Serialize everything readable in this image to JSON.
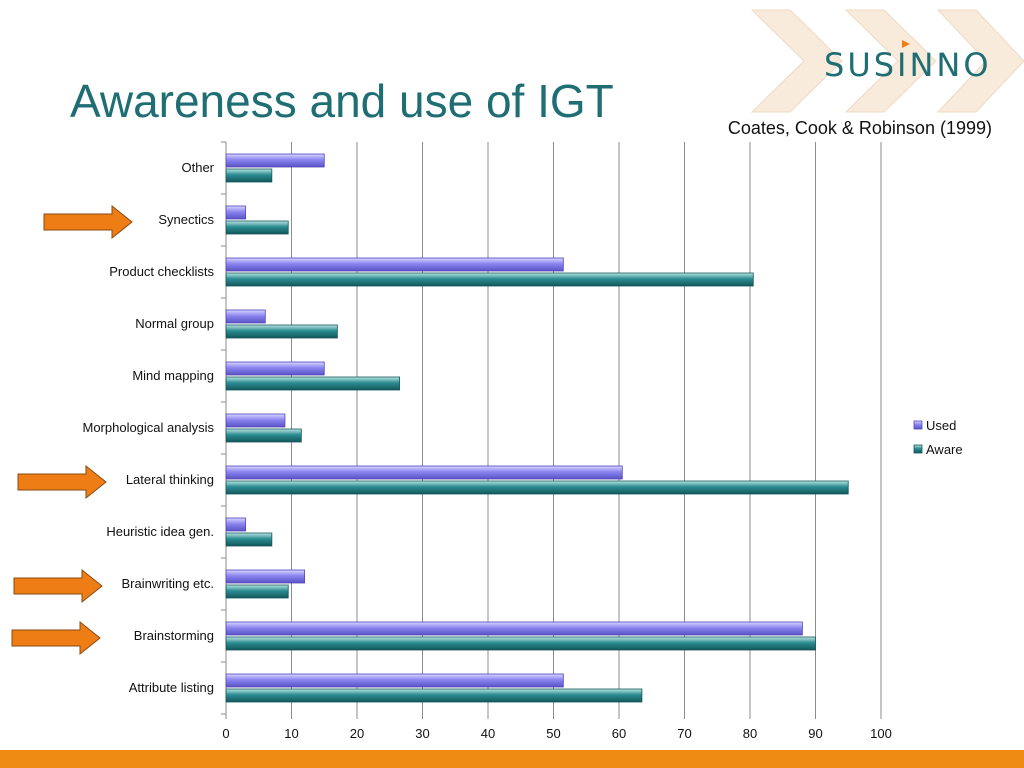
{
  "slide": {
    "title": "Awareness and use of IGT",
    "citation": "Coates, Cook & Robinson (1999)"
  },
  "logo": {
    "text": "SUSINNO",
    "color": "#1f6e74",
    "chevron_color": "#f7e7d6"
  },
  "colors": {
    "used": "#7a72e6",
    "aware": "#1f7c80",
    "arrow": "#ef7d16",
    "footer": "#ef8b12"
  },
  "chart_data": {
    "type": "bar",
    "orientation": "horizontal",
    "categories": [
      "Other",
      "Synectics",
      "Product checklists",
      "Normal group",
      "Mind mapping",
      "Morphological analysis",
      "Lateral thinking",
      "Heuristic idea gen.",
      "Brainwriting etc.",
      "Brainstorming",
      "Attribute listing"
    ],
    "series": [
      {
        "name": "Used",
        "values": [
          15,
          3,
          51.5,
          6,
          15,
          9,
          60.5,
          3,
          12,
          88,
          51.5
        ]
      },
      {
        "name": "Aware",
        "values": [
          7,
          9.5,
          80.5,
          17,
          26.5,
          11.5,
          95,
          7,
          9.5,
          90,
          63.5
        ]
      }
    ],
    "xlim": [
      0,
      100
    ],
    "xticks": [
      0,
      10,
      20,
      30,
      40,
      50,
      60,
      70,
      80,
      90,
      100
    ],
    "grid": true,
    "legend": "right",
    "highlighted_categories": [
      "Synectics",
      "Lateral thinking",
      "Brainwriting etc.",
      "Brainstorming"
    ]
  }
}
